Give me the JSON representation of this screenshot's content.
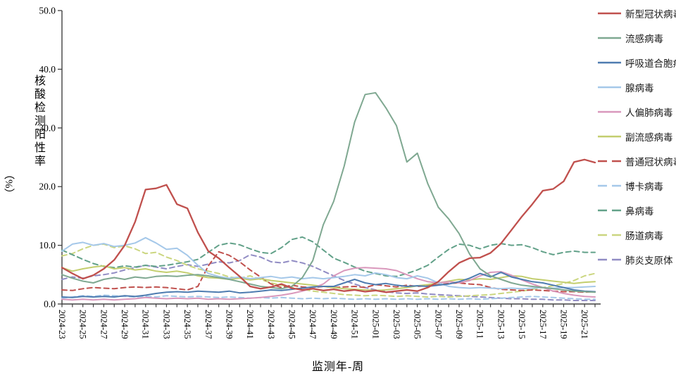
{
  "chart_data": {
    "type": "line",
    "title": "",
    "xlabel": "监测年-周",
    "ylabel": "核酸检测阳性率",
    "ylabel_unit": "（%）",
    "ylim": [
      0,
      50
    ],
    "yticks": [
      0,
      10,
      20,
      30,
      40,
      50
    ],
    "ytick_labels": [
      "0.0",
      "10.0",
      "20.0",
      "30.0",
      "40.0",
      "50.0"
    ],
    "grid": false,
    "legend_position": "right",
    "xtick_label_every": 2,
    "x_categories": [
      "2024-23",
      "2024-24",
      "2024-25",
      "2024-26",
      "2024-27",
      "2024-28",
      "2024-29",
      "2024-30",
      "2024-31",
      "2024-32",
      "2024-33",
      "2024-34",
      "2024-35",
      "2024-36",
      "2024-37",
      "2024-38",
      "2024-39",
      "2024-40",
      "2024-41",
      "2024-42",
      "2024-43",
      "2024-44",
      "2024-45",
      "2024-46",
      "2024-47",
      "2024-48",
      "2024-49",
      "2024-50",
      "2024-51",
      "2024-52",
      "2025-01",
      "2025-02",
      "2025-03",
      "2025-04",
      "2025-05",
      "2025-06",
      "2025-07",
      "2025-08",
      "2025-09",
      "2025-10",
      "2025-11",
      "2025-12",
      "2025-13",
      "2025-14",
      "2025-15",
      "2025-16",
      "2025-17",
      "2025-18",
      "2025-19",
      "2025-20",
      "2025-21",
      "2025-22"
    ],
    "series": [
      {
        "key": "covid",
        "name": "新型冠状病毒",
        "color": "#C0504D",
        "style": "solid",
        "values": [
          6.2,
          5.2,
          4.3,
          4.9,
          6.0,
          7.5,
          10.0,
          14.0,
          19.5,
          19.7,
          20.3,
          17.0,
          16.3,
          12.2,
          9.0,
          7.8,
          6.2,
          4.7,
          3.0,
          2.6,
          2.9,
          3.4,
          2.7,
          2.4,
          2.6,
          2.3,
          2.5,
          2.2,
          2.4,
          2.1,
          2.3,
          2.0,
          2.2,
          2.4,
          2.2,
          2.8,
          3.8,
          5.5,
          7.0,
          7.8,
          7.9,
          8.7,
          10.3,
          12.6,
          14.9,
          17.0,
          19.3,
          19.6,
          20.9,
          24.2,
          24.6,
          24.1
        ]
      },
      {
        "key": "influenza",
        "name": "流感病毒",
        "color": "#7FA891",
        "style": "solid",
        "values": [
          5.0,
          4.4,
          3.9,
          3.6,
          4.2,
          4.5,
          4.2,
          4.6,
          4.4,
          4.7,
          4.8,
          4.7,
          4.9,
          5.0,
          4.8,
          4.5,
          4.2,
          3.8,
          3.4,
          3.0,
          2.8,
          2.6,
          3.0,
          4.5,
          7.4,
          13.5,
          17.5,
          23.5,
          31.0,
          35.7,
          36.0,
          33.4,
          30.4,
          24.2,
          25.7,
          20.5,
          16.5,
          14.5,
          12.0,
          8.5,
          6.0,
          4.8,
          4.2,
          3.6,
          3.2,
          3.0,
          2.8,
          2.6,
          2.4,
          2.2,
          2.1,
          2.0
        ]
      },
      {
        "key": "rsv",
        "name": "呼吸道合胞病毒",
        "color": "#4E7CB0",
        "style": "solid",
        "values": [
          1.2,
          1.1,
          1.3,
          1.2,
          1.3,
          1.2,
          1.4,
          1.3,
          1.5,
          1.8,
          2.0,
          2.1,
          2.0,
          2.2,
          2.1,
          2.0,
          2.2,
          1.9,
          2.0,
          2.2,
          2.4,
          2.3,
          2.5,
          2.7,
          2.9,
          3.0,
          3.0,
          3.6,
          4.2,
          3.6,
          3.3,
          3.5,
          3.2,
          3.0,
          3.1,
          3.0,
          3.2,
          3.4,
          3.8,
          4.4,
          5.2,
          4.6,
          5.4,
          4.6,
          4.2,
          3.8,
          3.6,
          3.2,
          2.8,
          2.4,
          2.2,
          2.1
        ]
      },
      {
        "key": "adenovirus",
        "name": "腺病毒",
        "color": "#A5C8E9",
        "style": "solid",
        "values": [
          9.0,
          10.2,
          10.5,
          10.0,
          10.3,
          9.8,
          10.0,
          10.4,
          11.3,
          10.4,
          9.3,
          9.5,
          8.3,
          6.6,
          5.2,
          4.7,
          4.4,
          4.6,
          4.3,
          4.5,
          4.7,
          4.4,
          4.6,
          4.3,
          4.5,
          4.3,
          4.5,
          4.7,
          5.0,
          4.8,
          5.3,
          5.0,
          4.5,
          4.3,
          4.8,
          4.4,
          3.6,
          3.0,
          2.8,
          2.7,
          2.8,
          2.7,
          2.6,
          2.7,
          2.6,
          2.7,
          2.8,
          2.7,
          2.8,
          2.8,
          2.9,
          3.0
        ]
      },
      {
        "key": "hmpv",
        "name": "人偏肺病毒",
        "color": "#D998BC",
        "style": "solid",
        "values": [
          0.8,
          0.7,
          0.8,
          0.7,
          0.8,
          0.7,
          0.8,
          0.9,
          1.1,
          1.0,
          0.9,
          1.0,
          0.9,
          1.0,
          0.8,
          0.9,
          0.8,
          0.9,
          1.0,
          1.1,
          1.3,
          1.5,
          1.8,
          2.2,
          2.7,
          3.4,
          4.8,
          5.7,
          6.1,
          6.2,
          6.1,
          6.0,
          5.7,
          5.0,
          4.3,
          3.8,
          3.6,
          3.8,
          3.6,
          4.0,
          4.8,
          5.4,
          5.5,
          4.9,
          4.1,
          3.4,
          2.8,
          2.2,
          1.8,
          1.5,
          1.3,
          1.2
        ]
      },
      {
        "key": "parainfluenza",
        "name": "副流感病毒",
        "color": "#C3CE6E",
        "style": "solid",
        "values": [
          6.2,
          5.6,
          6.0,
          6.3,
          6.5,
          6.0,
          6.2,
          5.8,
          6.0,
          5.6,
          5.4,
          5.6,
          5.3,
          4.8,
          4.5,
          4.4,
          4.2,
          4.4,
          4.1,
          4.3,
          4.0,
          3.8,
          3.6,
          3.4,
          3.2,
          3.0,
          2.8,
          2.6,
          2.5,
          2.4,
          2.3,
          2.4,
          2.6,
          2.8,
          3.1,
          3.3,
          3.6,
          3.9,
          4.2,
          4.1,
          4.3,
          4.2,
          4.5,
          4.8,
          4.7,
          4.3,
          4.1,
          3.9,
          3.7,
          3.5,
          3.7,
          3.8
        ]
      },
      {
        "key": "common-cov",
        "name": "普通冠状病毒",
        "color": "#C0504D",
        "style": "dashed",
        "values": [
          2.4,
          2.3,
          2.6,
          2.8,
          2.7,
          2.6,
          2.8,
          2.9,
          2.8,
          2.9,
          2.8,
          2.6,
          2.4,
          3.0,
          6.5,
          8.9,
          8.3,
          7.2,
          5.8,
          4.6,
          3.4,
          2.8,
          3.2,
          2.9,
          2.8,
          3.0,
          2.8,
          2.9,
          3.0,
          2.8,
          3.3,
          3.1,
          2.9,
          3.2,
          3.0,
          3.1,
          3.3,
          3.5,
          3.6,
          3.4,
          3.3,
          2.8,
          2.5,
          2.4,
          2.3,
          2.4,
          2.3,
          2.2,
          2.1,
          2.1,
          2.0,
          2.1
        ]
      },
      {
        "key": "bocavirus",
        "name": "博卡病毒",
        "color": "#A5C8E9",
        "style": "dashed",
        "values": [
          1.0,
          1.2,
          1.4,
          1.3,
          1.5,
          1.4,
          1.3,
          1.2,
          1.3,
          1.2,
          1.4,
          1.3,
          1.2,
          1.3,
          1.2,
          1.1,
          1.2,
          1.1,
          1.0,
          1.1,
          1.0,
          1.1,
          1.0,
          0.9,
          1.0,
          0.9,
          1.0,
          0.9,
          0.8,
          0.9,
          0.8,
          0.9,
          0.8,
          0.9,
          0.8,
          0.9,
          0.8,
          0.9,
          0.8,
          0.9,
          0.8,
          0.9,
          1.0,
          1.1,
          1.2,
          1.3,
          1.2,
          1.1,
          1.0,
          0.9,
          0.8,
          0.8
        ]
      },
      {
        "key": "rhinovirus",
        "name": "鼻病毒",
        "color": "#62A189",
        "style": "dashed",
        "values": [
          9.2,
          8.4,
          7.6,
          6.9,
          6.4,
          6.2,
          6.5,
          6.3,
          6.6,
          6.4,
          6.6,
          6.9,
          7.2,
          7.6,
          8.8,
          10.0,
          10.4,
          10.1,
          9.4,
          8.8,
          8.6,
          9.6,
          11.0,
          11.4,
          10.6,
          9.2,
          7.8,
          7.1,
          6.3,
          5.6,
          5.2,
          4.8,
          4.7,
          5.2,
          5.8,
          6.6,
          8.0,
          9.3,
          10.2,
          10.0,
          9.4,
          10.0,
          10.3,
          10.0,
          10.1,
          9.6,
          8.9,
          8.4,
          8.8,
          9.0,
          8.8,
          8.8
        ]
      },
      {
        "key": "enterovirus",
        "name": "肠道病毒",
        "color": "#CBD680",
        "style": "dashed",
        "values": [
          8.2,
          8.6,
          9.4,
          10.0,
          10.2,
          9.6,
          9.9,
          9.4,
          8.6,
          8.8,
          8.0,
          7.4,
          6.6,
          6.0,
          5.6,
          5.2,
          4.6,
          4.4,
          4.8,
          4.2,
          3.6,
          3.2,
          2.8,
          2.5,
          2.2,
          2.0,
          1.8,
          1.6,
          1.5,
          1.4,
          1.5,
          1.4,
          1.3,
          1.4,
          1.3,
          1.2,
          1.3,
          1.2,
          1.3,
          1.4,
          1.5,
          1.6,
          1.8,
          2.0,
          2.2,
          2.5,
          2.8,
          3.1,
          3.5,
          4.0,
          4.8,
          5.2
        ]
      },
      {
        "key": "mycoplasma",
        "name": "肺炎支原体",
        "color": "#918CC4",
        "style": "dashed",
        "values": [
          4.2,
          4.6,
          4.4,
          4.8,
          5.0,
          5.3,
          5.8,
          6.2,
          6.6,
          6.3,
          6.0,
          6.4,
          6.7,
          6.4,
          6.8,
          7.2,
          7.0,
          7.4,
          8.4,
          8.0,
          7.2,
          7.0,
          7.4,
          7.0,
          6.4,
          5.6,
          4.8,
          4.0,
          3.4,
          2.8,
          2.4,
          2.1,
          1.9,
          1.8,
          1.9,
          1.7,
          1.6,
          1.5,
          1.4,
          1.3,
          1.2,
          1.1,
          1.0,
          0.9,
          0.9,
          0.8,
          0.8,
          0.7,
          0.7,
          0.6,
          0.6,
          0.6
        ]
      }
    ]
  }
}
